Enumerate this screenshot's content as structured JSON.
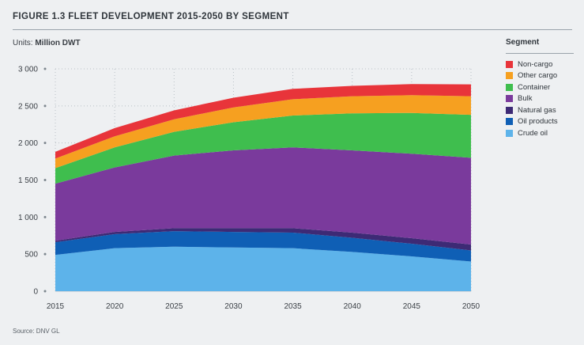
{
  "figure_title": "FIGURE 1.3 FLEET DEVELOPMENT 2015-2050 BY SEGMENT",
  "units_prefix": "Units: ",
  "units_value": "Million DWT",
  "source": "Source: DNV GL",
  "legend_title": "Segment",
  "chart_data": {
    "type": "area",
    "stacked": true,
    "title": "FIGURE 1.3 FLEET DEVELOPMENT 2015-2050 BY SEGMENT",
    "xlabel": "",
    "ylabel": "Million DWT",
    "x": [
      2015,
      2020,
      2025,
      2030,
      2035,
      2040,
      2045,
      2050
    ],
    "ylim": [
      0,
      3000
    ],
    "yticks": [
      0,
      500,
      1000,
      1500,
      2000,
      2500,
      3000
    ],
    "ytick_labels": [
      "0",
      "500",
      "1 000",
      "1 500",
      "2 000",
      "2 500",
      "3 000"
    ],
    "xtick_labels": [
      "2015",
      "2020",
      "2025",
      "2030",
      "2035",
      "2040",
      "2045",
      "2050"
    ],
    "legend_position": "right",
    "series": [
      {
        "name": "Crude oil",
        "color": "#5db3ea",
        "values": [
          490,
          580,
          600,
          590,
          580,
          530,
          470,
          400
        ]
      },
      {
        "name": "Oil products",
        "color": "#0f5fb5",
        "values": [
          170,
          190,
          210,
          210,
          210,
          190,
          170,
          150
        ]
      },
      {
        "name": "Natural gas",
        "color": "#3d2a75",
        "values": [
          20,
          30,
          40,
          50,
          60,
          70,
          75,
          80
        ]
      },
      {
        "name": "Bulk",
        "color": "#7a3a9c",
        "values": [
          770,
          870,
          980,
          1050,
          1090,
          1110,
          1140,
          1170
        ]
      },
      {
        "name": "Container",
        "color": "#3fbe4e",
        "values": [
          210,
          270,
          320,
          380,
          430,
          500,
          550,
          580
        ]
      },
      {
        "name": "Other cargo",
        "color": "#f6a020",
        "values": [
          130,
          150,
          170,
          200,
          220,
          230,
          240,
          250
        ]
      },
      {
        "name": "Non-cargo",
        "color": "#e8343a",
        "values": [
          90,
          110,
          120,
          130,
          140,
          140,
          150,
          160
        ]
      }
    ]
  }
}
